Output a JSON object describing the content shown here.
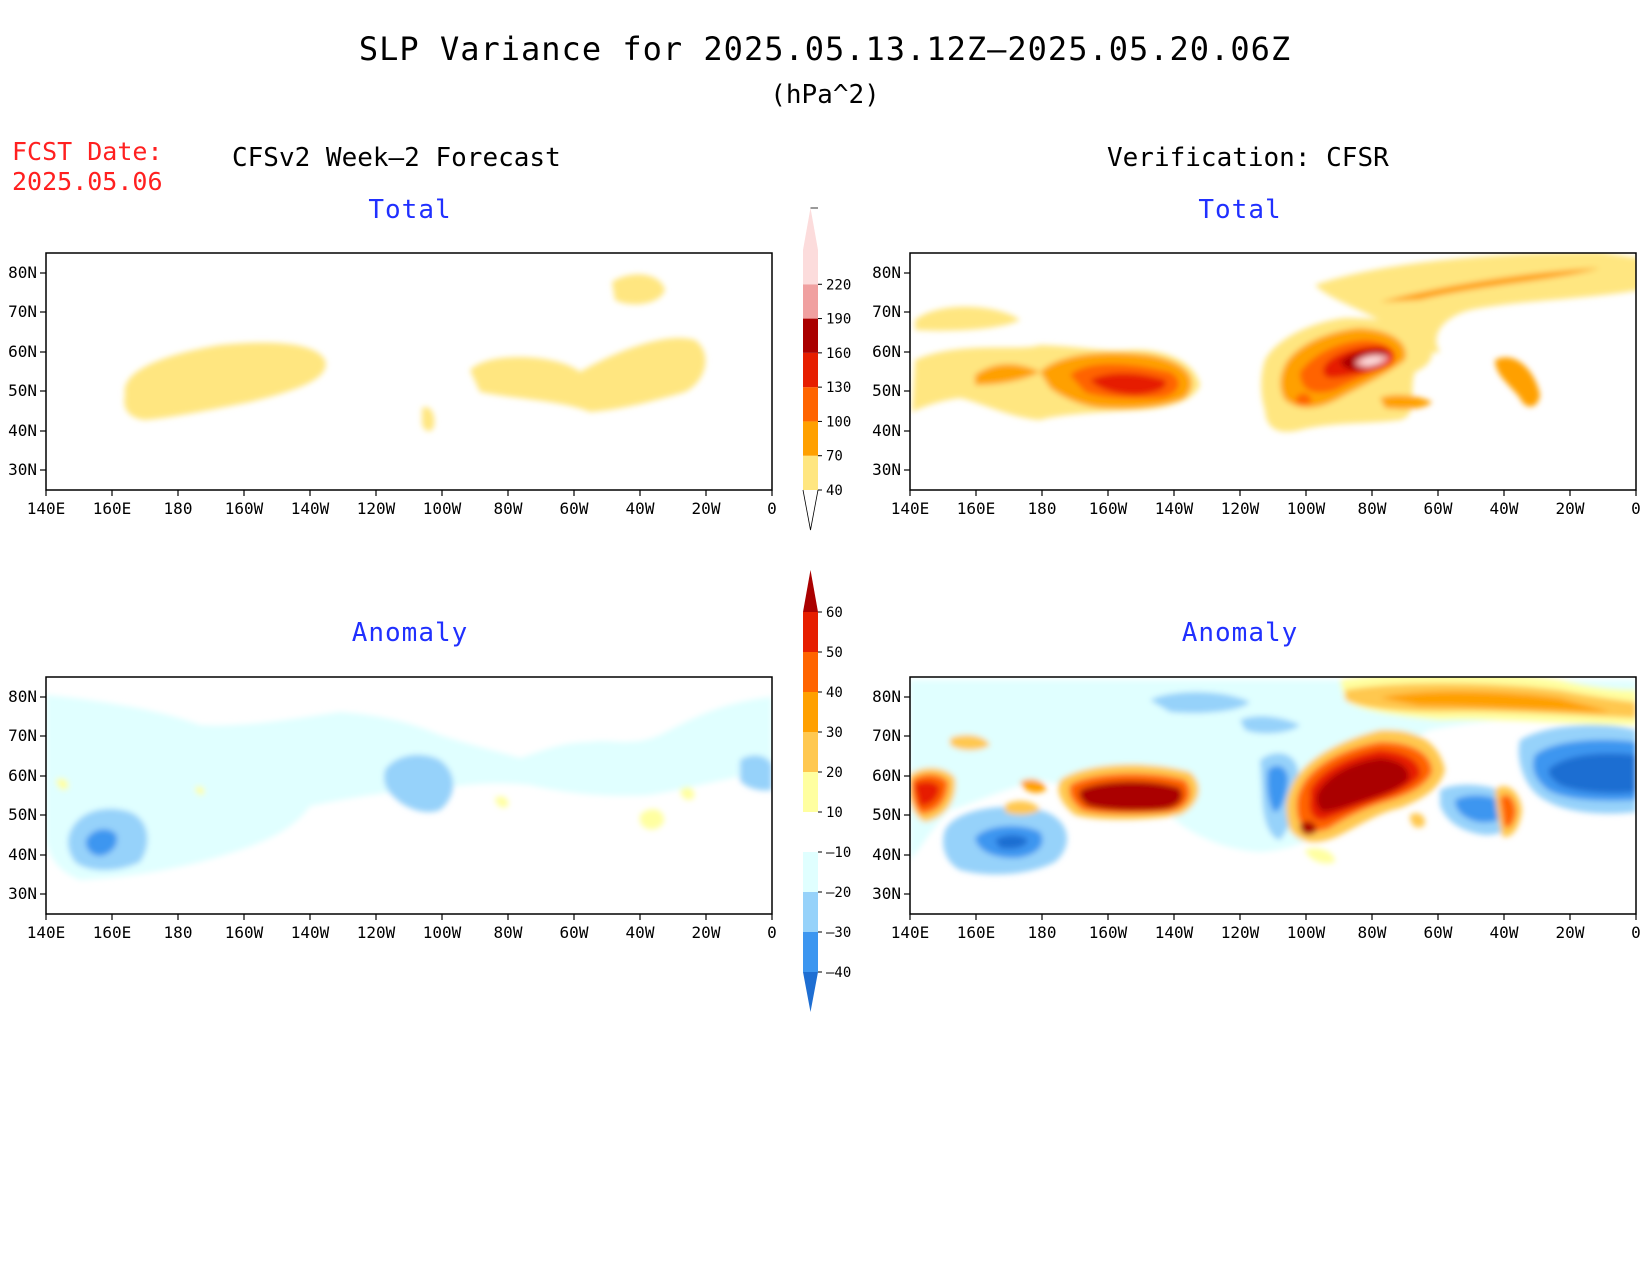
{
  "title": "SLP Variance for 2025.05.13.12Z–2025.05.20.06Z",
  "units": "(hPa^2)",
  "fcst_label": "FCST Date:",
  "fcst_date": "2025.05.06",
  "left_header": "CFSv2 Week–2 Forecast",
  "right_header": "Verification: CFSR",
  "panels": {
    "fc_total": {
      "title": "Total"
    },
    "vf_total": {
      "title": "Total"
    },
    "fc_anom": {
      "title": "Anomaly"
    },
    "vf_anom": {
      "title": "Anomaly"
    }
  },
  "axes": {
    "lat_labels": [
      "80N",
      "70N",
      "60N",
      "50N",
      "40N",
      "30N"
    ],
    "lon_labels": [
      "140E",
      "160E",
      "180",
      "160W",
      "140W",
      "120W",
      "100W",
      "80W",
      "60W",
      "40W",
      "20W",
      "0"
    ]
  },
  "colorbars": {
    "total": {
      "labels": [
        "40",
        "70",
        "100",
        "130",
        "160",
        "190",
        "220"
      ],
      "colors": [
        "#ffe680",
        "#ffa000",
        "#ff6400",
        "#e61e00",
        "#aa0000",
        "#f0a0a0",
        "#fcdcdc"
      ]
    },
    "anomaly": {
      "labels": [
        "60",
        "50",
        "40",
        "30",
        "20",
        "10",
        "–10",
        "–20",
        "–30",
        "–40"
      ],
      "colors": [
        "#aa0000",
        "#e61e00",
        "#ff6400",
        "#ffa000",
        "#ffc850",
        "#ffffa0",
        "#ffffff",
        "#e0ffff",
        "#96d2fa",
        "#3c96f0",
        "#1e6ed2"
      ]
    }
  }
}
